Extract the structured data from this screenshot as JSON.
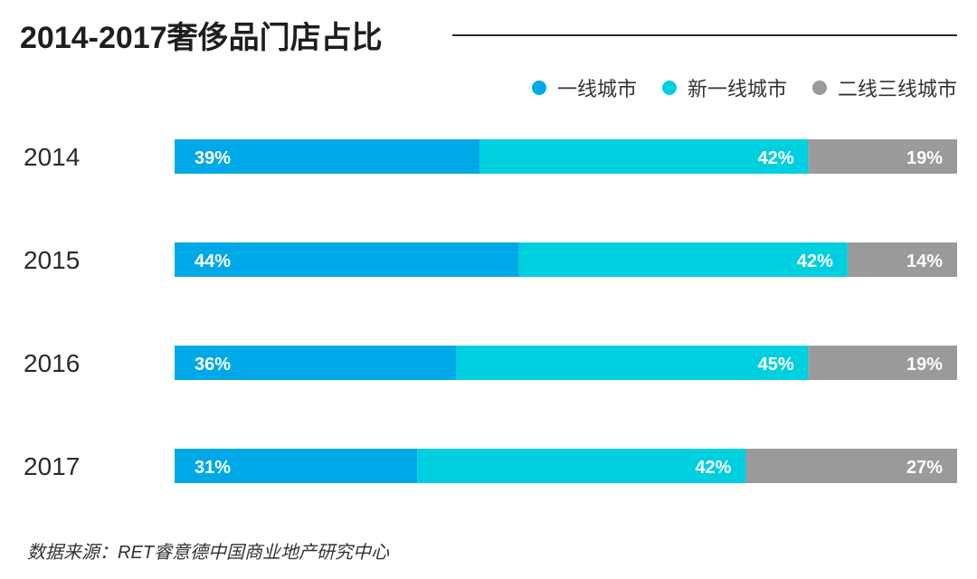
{
  "title": "2014-2017奢侈品门店占比",
  "source": "数据来源：RET睿意德中国商业地产研究中心",
  "chart_data": {
    "type": "bar",
    "orientation": "horizontal",
    "stacked": true,
    "percent": true,
    "title": "2014-2017奢侈品门店占比",
    "xlabel": "",
    "ylabel": "",
    "xlim": [
      0,
      100
    ],
    "grid": false,
    "legend_position": "top-right",
    "categories": [
      "2014",
      "2015",
      "2016",
      "2017"
    ],
    "series": [
      {
        "name": "一线城市",
        "color": "#00a8e8",
        "values": [
          39,
          44,
          36,
          31
        ],
        "labels": [
          "39%",
          "44%",
          "36%",
          "31%"
        ]
      },
      {
        "name": "新一线城市",
        "color": "#00cfe0",
        "values": [
          42,
          42,
          45,
          42
        ],
        "labels": [
          "42%",
          "42%",
          "45%",
          "42%"
        ]
      },
      {
        "name": "二线三线城市",
        "color": "#9a9a9a",
        "values": [
          19,
          14,
          19,
          27
        ],
        "labels": [
          "19%",
          "14%",
          "19%",
          "27%"
        ]
      }
    ]
  }
}
